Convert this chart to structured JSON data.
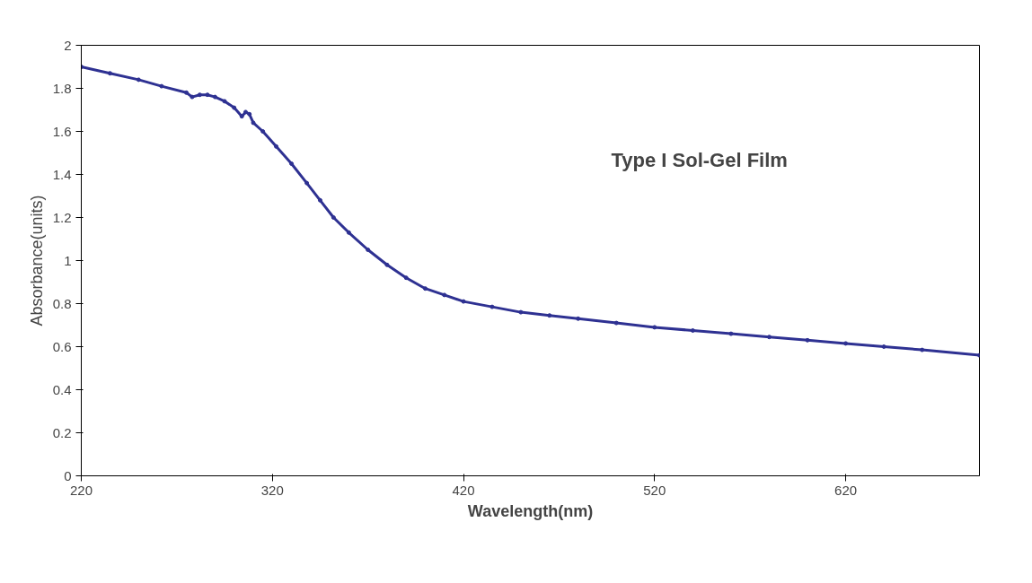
{
  "chart_data": {
    "type": "line",
    "xlabel": "Wavelength(nm)",
    "ylabel": "Absorbance(units)",
    "annotations": [
      "Type I Sol-Gel Film"
    ],
    "x": [
      220,
      235,
      250,
      262,
      275,
      278,
      282,
      286,
      290,
      295,
      300,
      304,
      306,
      308,
      310,
      315,
      322,
      330,
      338,
      345,
      352,
      360,
      370,
      380,
      390,
      400,
      410,
      420,
      435,
      450,
      465,
      480,
      500,
      520,
      540,
      560,
      580,
      600,
      620,
      640,
      660,
      690
    ],
    "series": [
      {
        "color": "#2e3192",
        "values": [
          1.9,
          1.87,
          1.84,
          1.81,
          1.78,
          1.76,
          1.77,
          1.77,
          1.76,
          1.74,
          1.71,
          1.67,
          1.69,
          1.68,
          1.64,
          1.6,
          1.53,
          1.45,
          1.36,
          1.28,
          1.2,
          1.13,
          1.05,
          0.98,
          0.92,
          0.87,
          0.84,
          0.81,
          0.785,
          0.76,
          0.745,
          0.73,
          0.71,
          0.69,
          0.675,
          0.66,
          0.645,
          0.63,
          0.615,
          0.6,
          0.585,
          0.56
        ]
      }
    ],
    "xlim": [
      220,
      690
    ],
    "ylim": [
      0,
      2
    ],
    "xticks": [
      220,
      320,
      420,
      520,
      620
    ],
    "yticks": [
      0,
      0.2,
      0.4,
      0.6,
      0.8,
      1,
      1.2,
      1.4,
      1.6,
      1.8,
      2
    ],
    "grid": false,
    "marker": "circle",
    "line_style": "solid"
  }
}
